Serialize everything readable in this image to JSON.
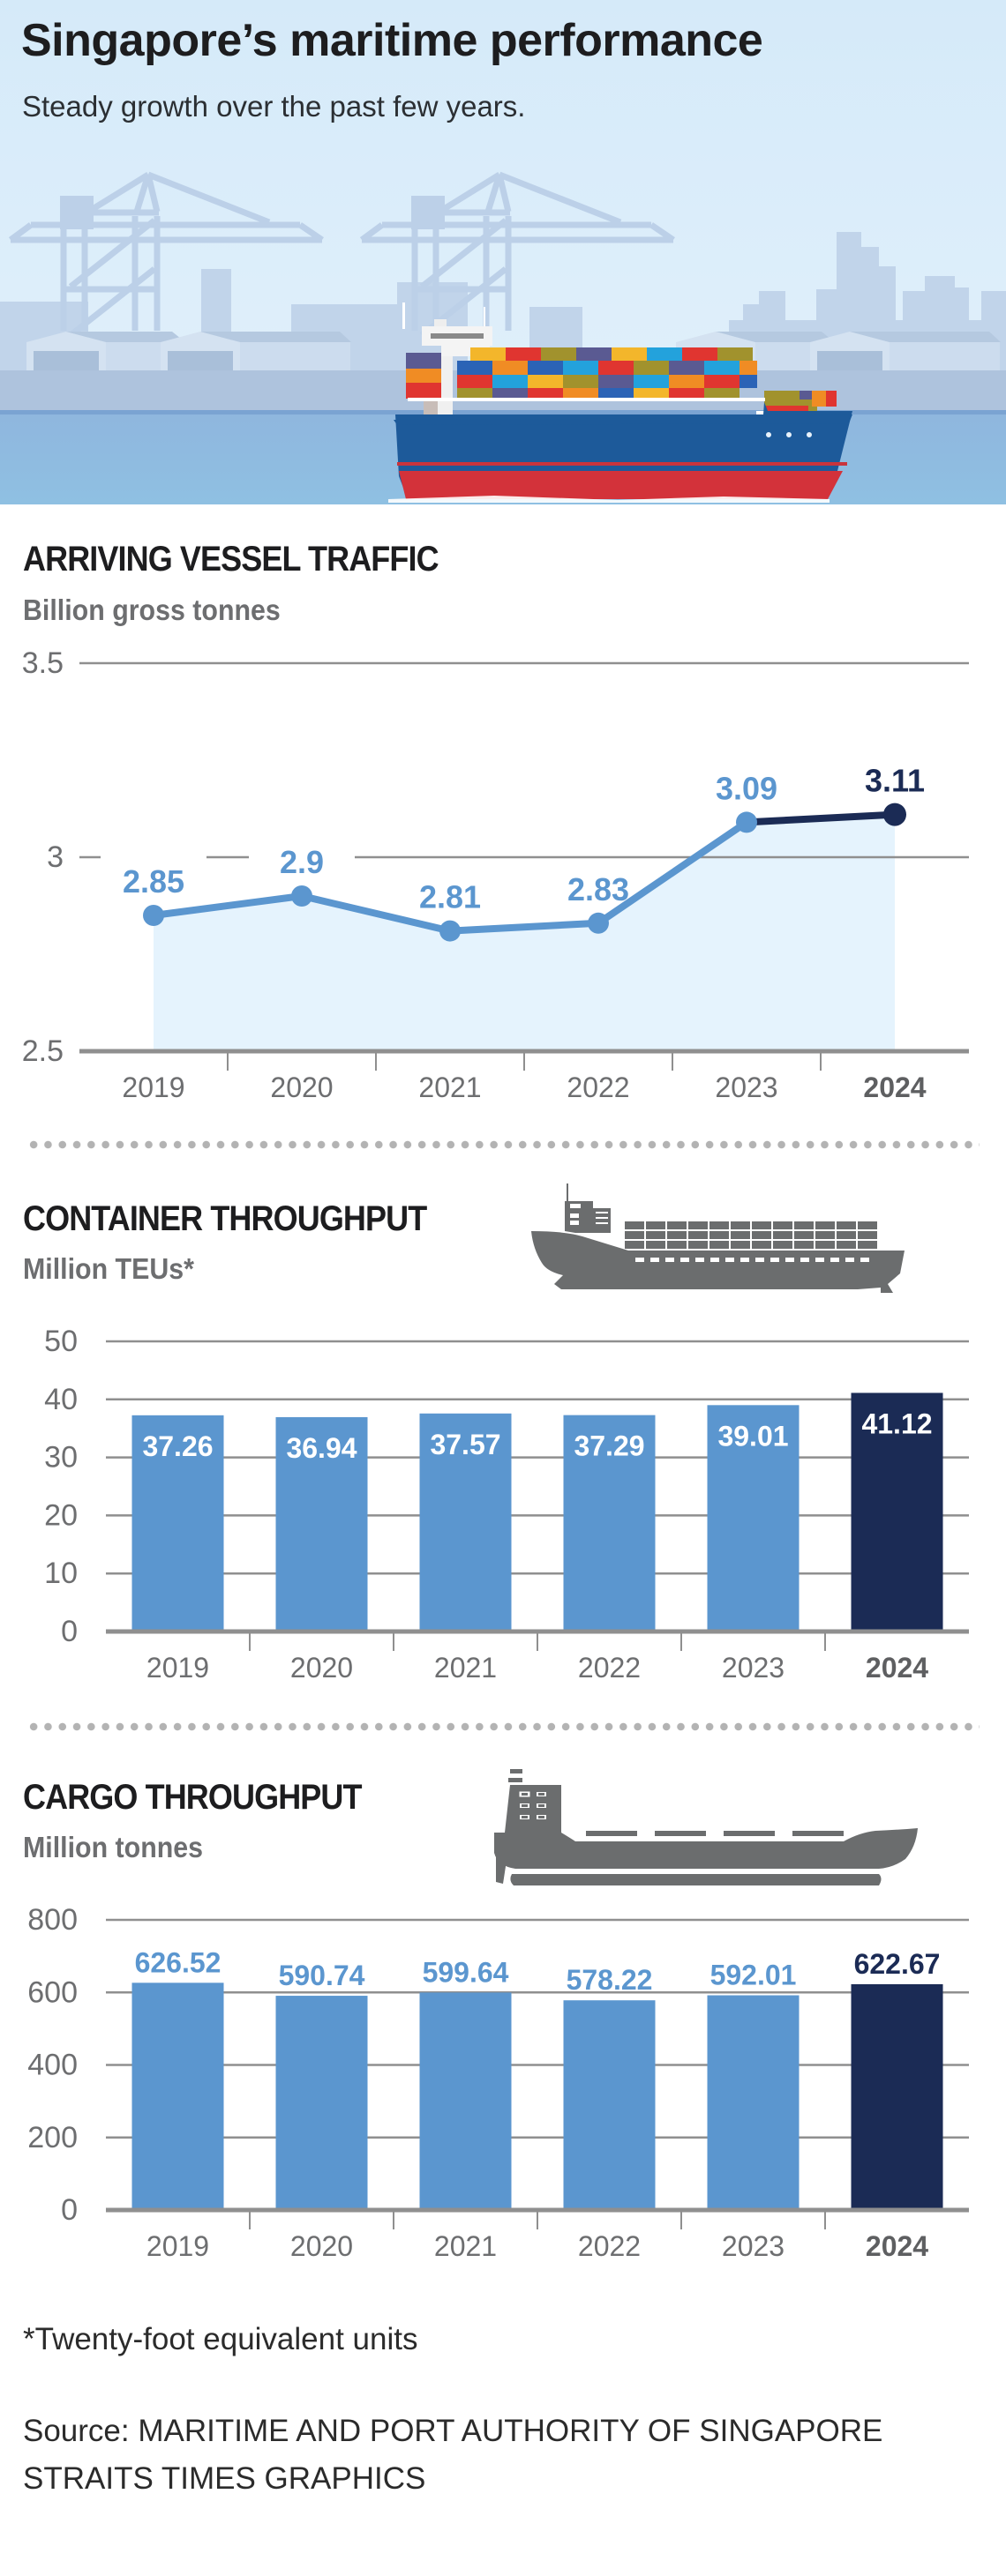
{
  "header": {
    "title": "Singapore’s maritime performance",
    "subtitle": "Steady growth over the past few years."
  },
  "colors": {
    "highlight": "#1b2b55",
    "primary": "#5b96cf",
    "area_fill": "#e5f3fd",
    "grid": "#8f8f8f",
    "axis_text": "#6d6e70",
    "icon_gray": "#6b6d6e"
  },
  "sections": {
    "vessel": {
      "title": "ARRIVING VESSEL TRAFFIC",
      "subtitle": "Billion gross tonnes"
    },
    "container": {
      "title": "CONTAINER THROUGHPUT",
      "subtitle": "Million TEUs*"
    },
    "cargo": {
      "title": "CARGO THROUGHPUT",
      "subtitle": "Million tonnes"
    }
  },
  "footer": {
    "footnote": "*Twenty-foot equivalent units",
    "source": "Source: MARITIME AND PORT AUTHORITY OF SINGAPORE",
    "credit": "STRAITS TIMES GRAPHICS"
  },
  "chart_data": [
    {
      "id": "vessel",
      "type": "line",
      "title": "ARRIVING VESSEL TRAFFIC",
      "ylabel": "Billion gross tonnes",
      "xlabel": "",
      "categories": [
        "2019",
        "2020",
        "2021",
        "2022",
        "2023",
        "2024"
      ],
      "values": [
        2.85,
        2.9,
        2.81,
        2.83,
        3.09,
        3.11
      ],
      "value_labels": [
        "2.85",
        "2.9",
        "2.81",
        "2.83",
        "3.09",
        "3.11"
      ],
      "highlight_index": 5,
      "ylim": [
        2.5,
        3.5
      ],
      "yticks": [
        2.5,
        3,
        3.5
      ],
      "ytick_labels": [
        "2.5",
        "3",
        "3.5"
      ],
      "grid": true,
      "area_fill": true
    },
    {
      "id": "container",
      "type": "bar",
      "title": "CONTAINER THROUGHPUT",
      "ylabel": "Million TEUs*",
      "xlabel": "",
      "categories": [
        "2019",
        "2020",
        "2021",
        "2022",
        "2023",
        "2024"
      ],
      "values": [
        37.26,
        36.94,
        37.57,
        37.29,
        39.01,
        41.12
      ],
      "value_labels": [
        "37.26",
        "36.94",
        "37.57",
        "37.29",
        "39.01",
        "41.12"
      ],
      "label_position": "inside-top",
      "highlight_index": 5,
      "ylim": [
        0,
        50
      ],
      "yticks": [
        0,
        10,
        20,
        30,
        40,
        50
      ],
      "ytick_labels": [
        "0",
        "10",
        "20",
        "30",
        "40",
        "50"
      ],
      "grid": true
    },
    {
      "id": "cargo",
      "type": "bar",
      "title": "CARGO THROUGHPUT",
      "ylabel": "Million tonnes",
      "xlabel": "",
      "categories": [
        "2019",
        "2020",
        "2021",
        "2022",
        "2023",
        "2024"
      ],
      "values": [
        626.52,
        590.74,
        599.64,
        578.22,
        592.01,
        622.67
      ],
      "value_labels": [
        "626.52",
        "590.74",
        "599.64",
        "578.22",
        "592.01",
        "622.67"
      ],
      "label_position": "above",
      "highlight_index": 5,
      "ylim": [
        0,
        800
      ],
      "yticks": [
        0,
        200,
        400,
        600,
        800
      ],
      "ytick_labels": [
        "0",
        "200",
        "400",
        "600",
        "800"
      ],
      "grid": true
    }
  ]
}
